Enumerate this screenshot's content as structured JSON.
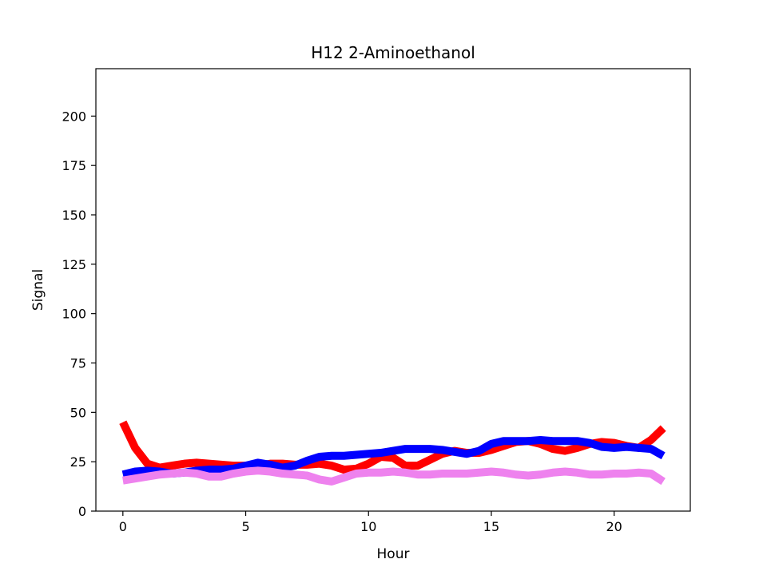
{
  "chart_data": {
    "type": "line",
    "title": "H12 2-Aminoethanol",
    "xlabel": "Hour",
    "ylabel": "Signal",
    "xlim": [
      -1.1,
      23.1
    ],
    "ylim": [
      0,
      224
    ],
    "xticks": [
      0,
      5,
      10,
      15,
      20
    ],
    "yticks": [
      0,
      25,
      50,
      75,
      100,
      125,
      150,
      175,
      200
    ],
    "grid": false,
    "legend": "none",
    "x": [
      0,
      0.5,
      1,
      1.5,
      2,
      2.5,
      3,
      3.5,
      4,
      4.5,
      5,
      5.5,
      6,
      6.5,
      7,
      7.5,
      8,
      8.5,
      9,
      9.5,
      10,
      10.5,
      11,
      11.5,
      12,
      12.5,
      13,
      13.5,
      14,
      14.5,
      15,
      15.5,
      16,
      16.5,
      17,
      17.5,
      18,
      18.5,
      19,
      19.5,
      20,
      20.5,
      21,
      21.5,
      22
    ],
    "series": [
      {
        "color": "#ff0000",
        "values": [
          45,
          32,
          24,
          22,
          23,
          24,
          24.5,
          24,
          23.5,
          23,
          23,
          23,
          24,
          24,
          23.5,
          23.5,
          24,
          23,
          21,
          21.5,
          24,
          27.5,
          27,
          23,
          23,
          26,
          29,
          30.5,
          29.5,
          29.5,
          31,
          33,
          35,
          35.5,
          34,
          31.5,
          30.5,
          32,
          34,
          35,
          34.5,
          33,
          32,
          36,
          42
        ]
      },
      {
        "color": "#0000ff",
        "values": [
          18.5,
          20,
          20.5,
          20,
          19,
          19.5,
          20.5,
          21,
          21,
          21.5,
          23,
          24.5,
          23.5,
          22,
          23,
          25.5,
          27.5,
          28,
          28,
          28.5,
          29,
          29.5,
          30.5,
          31.5,
          31.5,
          31.5,
          31,
          30,
          29,
          30.5,
          34,
          35.5,
          35.5,
          35.5,
          36,
          35.5,
          35.5,
          35.5,
          34.5,
          32.5,
          32,
          32.5,
          32,
          31.5,
          28
        ]
      },
      {
        "color": "#ee82ee",
        "values": [
          15.5,
          16.5,
          17.5,
          18.5,
          19,
          19.5,
          19,
          17.5,
          17.5,
          19,
          20,
          20.5,
          20,
          19,
          18.5,
          18,
          16,
          15,
          17,
          19,
          19.5,
          19.5,
          20,
          19.5,
          18.5,
          18.5,
          19,
          19,
          19,
          19.5,
          20,
          19.5,
          18.5,
          18,
          18.5,
          19.5,
          20,
          19.5,
          18.5,
          18.5,
          19,
          19,
          19.5,
          19,
          15
        ]
      }
    ]
  }
}
